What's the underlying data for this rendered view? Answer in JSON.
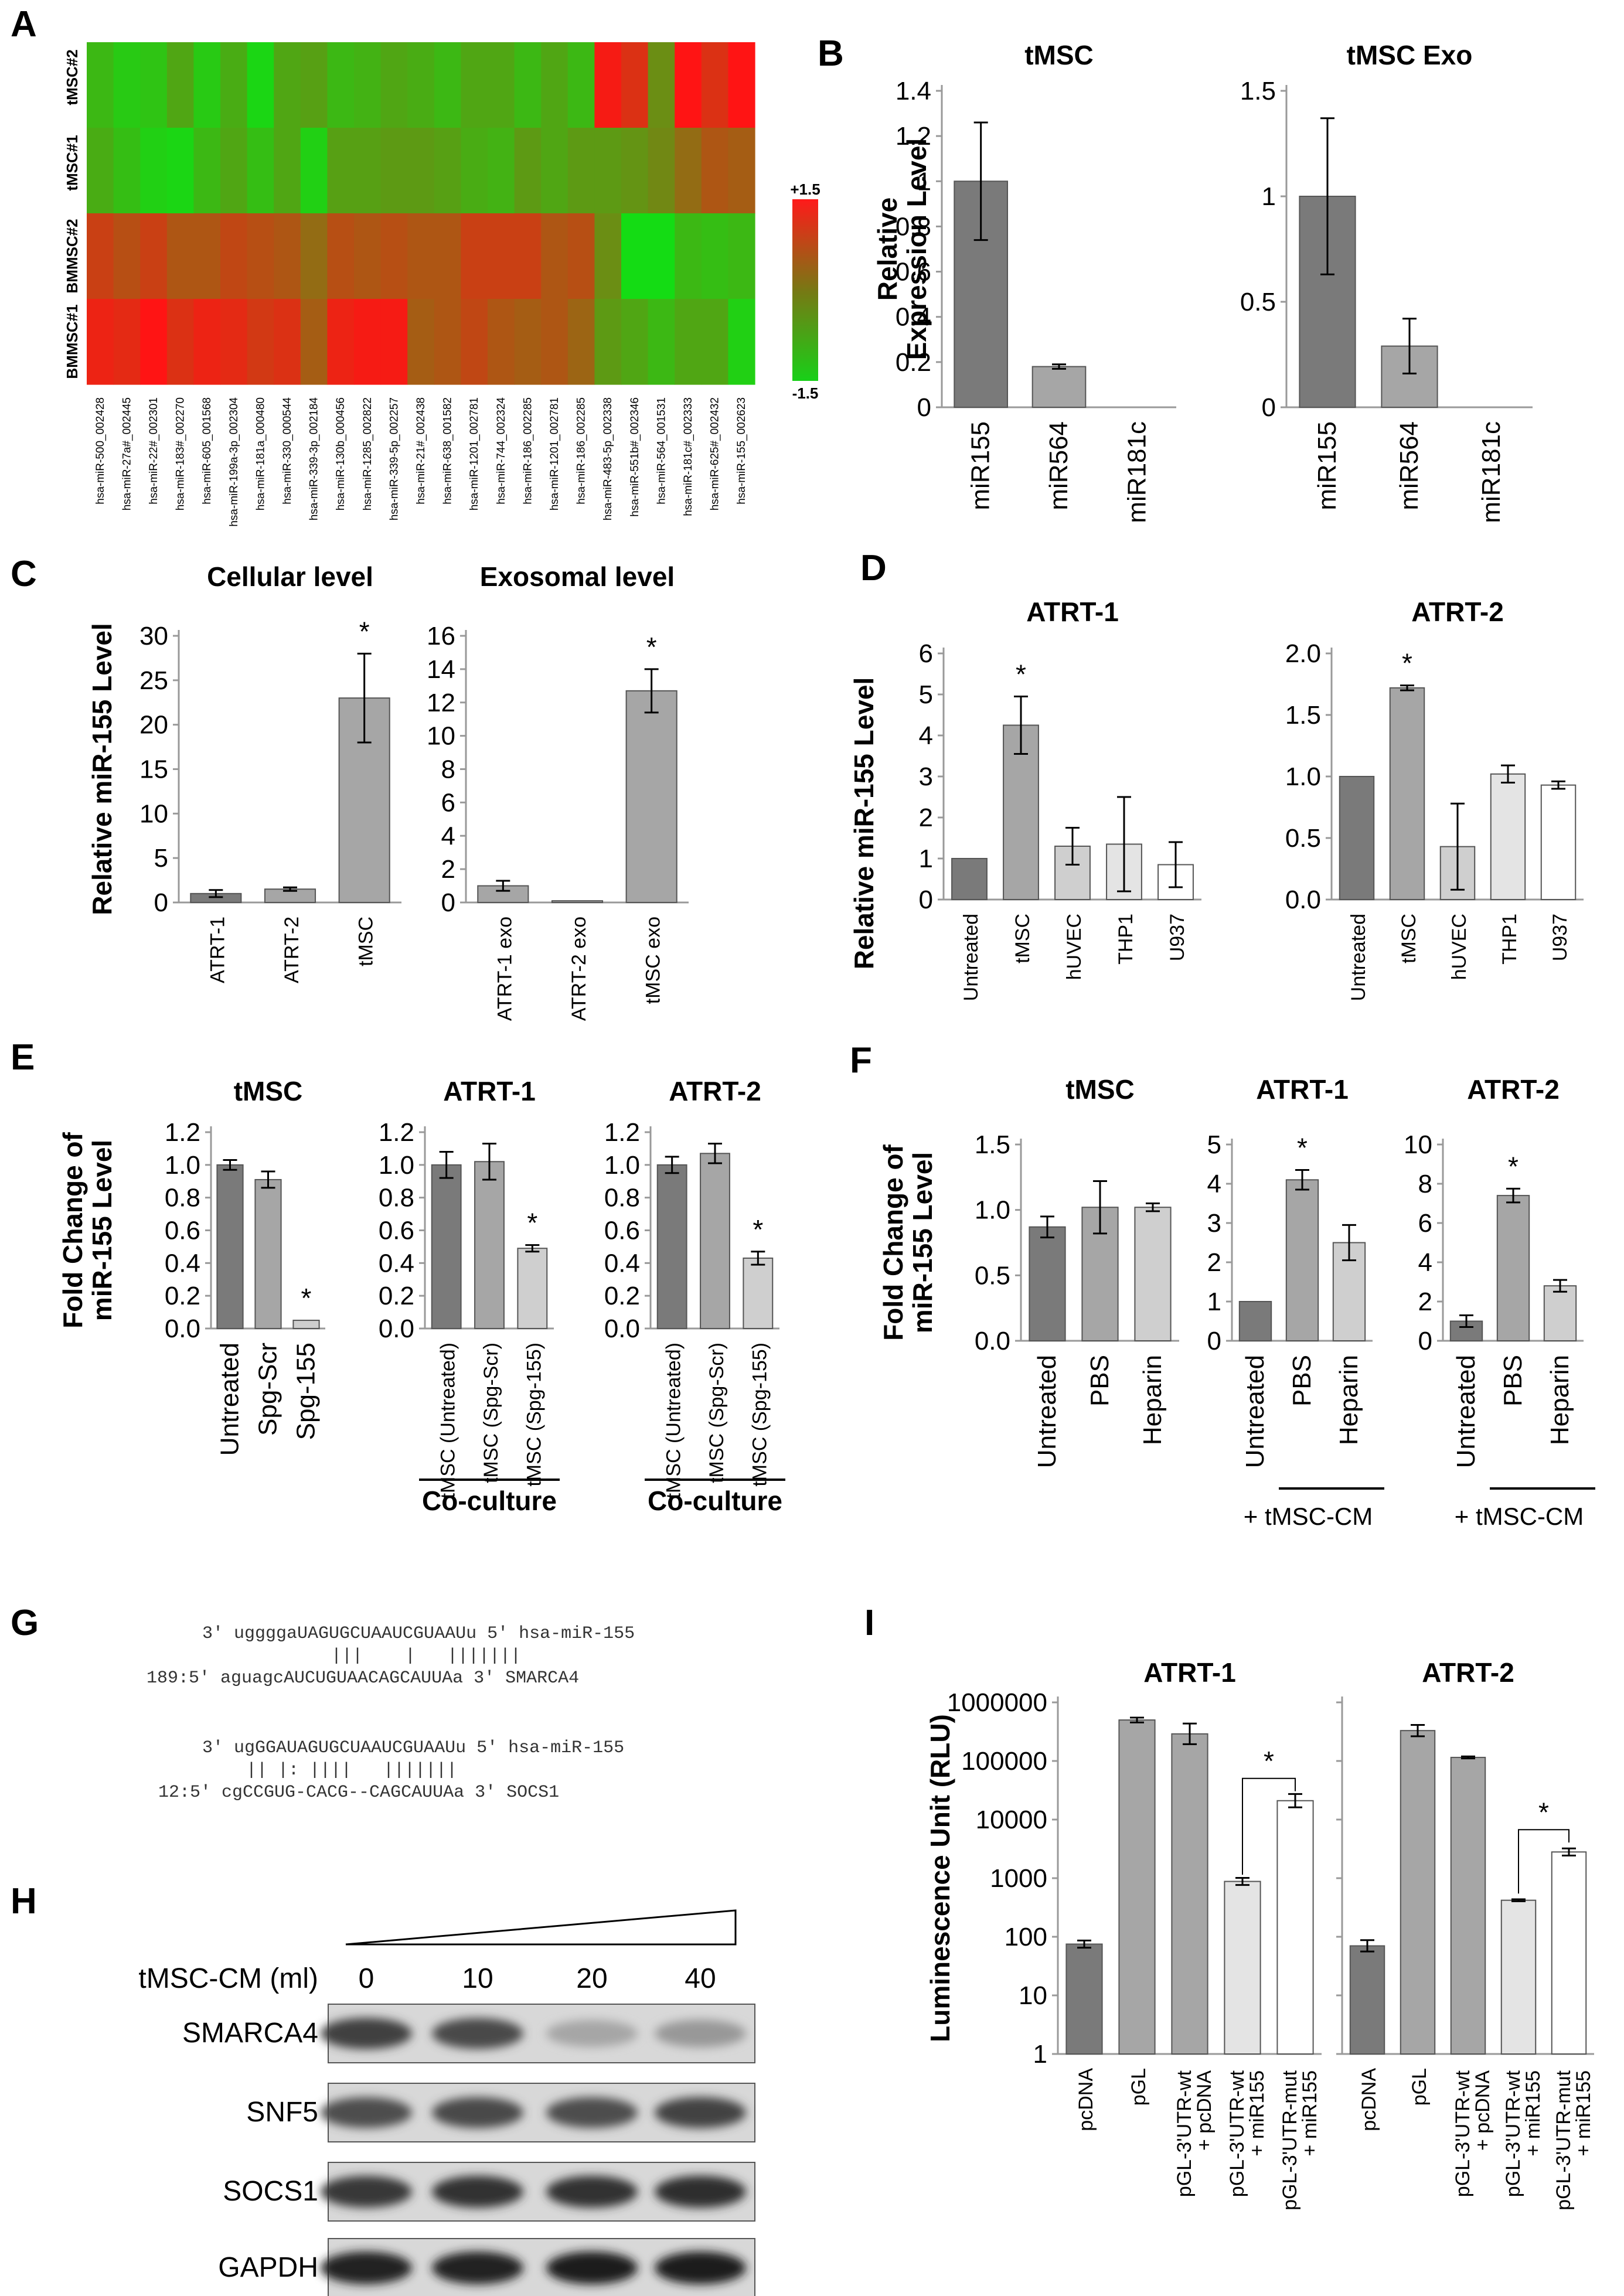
{
  "panel_letters": [
    "A",
    "B",
    "C",
    "D",
    "E",
    "F",
    "G",
    "H",
    "I"
  ],
  "colors": {
    "dark": "#7a7a7a",
    "mid": "#a6a6a6",
    "light": "#cfcfcf",
    "lighter": "#e4e4e4",
    "white": "#ffffff",
    "hm_green": "#18d018",
    "hm_red": "#ff1a1a"
  },
  "heatmap": {
    "rows": [
      "tMSC#2",
      "tMSC#1",
      "BMMSC#2",
      "BMMSC#1"
    ],
    "scale_max": "+1.5",
    "scale_min": "-1.5",
    "cols": [
      "hsa-miR-500_002428",
      "hsa-miR-27a#_002445",
      "hsa-miR-22#_002301",
      "hsa-miR-183#_002270",
      "hsa-miR-605_001568",
      "hsa-miR-199a-3p_002304",
      "hsa-miR-181a_000480",
      "hsa-miR-330_000544",
      "hsa-miR-339-3p_002184",
      "hsa-miR-130b_000456",
      "hsa-miR-1285_002822",
      "hsa-miR-339-5p_002257",
      "hsa-miR-21#_002438",
      "hsa-miR-638_001582",
      "hsa-miR-1201_002781",
      "hsa-miR-744_002324",
      "hsa-miR-186_002285",
      "hsa-miR-1201_002781",
      "hsa-miR-186_002285",
      "hsa-miR-483-5p_002338",
      "hsa-miR-551b#_002346",
      "hsa-miR-564_001531",
      "hsa-miR-181c#_002333",
      "hsa-miR-625#_002432",
      "hsa-miR-155_002623"
    ],
    "values": [
      [
        -0.9,
        -1.2,
        -1.1,
        -0.6,
        -1.2,
        -0.7,
        -1.4,
        -0.6,
        -0.5,
        -0.9,
        -0.8,
        -0.6,
        -0.7,
        -0.9,
        -0.6,
        -0.6,
        -0.9,
        -0.6,
        -0.9,
        1.4,
        1.1,
        -0.2,
        1.5,
        1.1,
        1.5
      ],
      [
        -0.7,
        -1.0,
        -1.3,
        -1.4,
        -0.9,
        -0.6,
        -1.0,
        -0.6,
        -1.3,
        -0.5,
        -0.5,
        -0.4,
        -0.4,
        -0.5,
        -0.7,
        -0.8,
        -0.4,
        -0.6,
        -0.4,
        -0.4,
        -0.3,
        -0.1,
        0.3,
        0.6,
        0.5
      ],
      [
        0.9,
        0.7,
        0.9,
        0.6,
        0.6,
        0.8,
        0.7,
        0.6,
        0.3,
        0.7,
        0.6,
        0.7,
        0.6,
        0.6,
        0.9,
        0.9,
        0.9,
        0.6,
        0.7,
        -0.2,
        -1.5,
        -1.5,
        -0.9,
        -1.0,
        -0.9
      ],
      [
        1.3,
        1.2,
        1.5,
        1.1,
        1.3,
        1.2,
        1.0,
        1.1,
        0.5,
        1.3,
        1.4,
        1.4,
        0.5,
        0.6,
        0.8,
        0.6,
        0.5,
        0.6,
        0.4,
        -0.4,
        -0.6,
        -0.9,
        -0.6,
        -0.6,
        -1.3
      ]
    ]
  },
  "chart_data": [
    {
      "id": "B1",
      "type": "bar",
      "title": "tMSC",
      "ylabel": "Relative Expression Level",
      "categories": [
        "miR155",
        "miR564",
        "miR181c"
      ],
      "values": [
        1.0,
        0.18,
        0.0
      ],
      "errors": [
        0.26,
        0.01,
        0.0
      ],
      "ylim": [
        0,
        1.4
      ],
      "ticks": [
        "0",
        "0.2",
        "0.4",
        "0.6",
        "0.8",
        "1",
        "1.2",
        "1.4"
      ]
    },
    {
      "id": "B2",
      "type": "bar",
      "title": "tMSC Exo",
      "categories": [
        "miR155",
        "miR564",
        "miR181c"
      ],
      "values": [
        1.0,
        0.29,
        0.0
      ],
      "errors": [
        0.37,
        0.13,
        0.0
      ],
      "ylim": [
        0,
        1.5
      ],
      "ticks": [
        "0",
        "0.5",
        "1",
        "1.5"
      ]
    },
    {
      "id": "C1",
      "type": "bar",
      "title": "Cellular level",
      "ylabel": "Relative miR-155 Level",
      "categories": [
        "ATRT-1",
        "ATRT-2",
        "tMSC"
      ],
      "values": [
        1.0,
        1.5,
        23.0
      ],
      "errors": [
        0.4,
        0.2,
        5.0
      ],
      "ylim": [
        0,
        30
      ],
      "ticks": [
        "0",
        "5",
        "10",
        "15",
        "20",
        "25",
        "30"
      ],
      "significant": [
        false,
        false,
        true
      ]
    },
    {
      "id": "C2",
      "type": "bar",
      "title": "Exosomal level",
      "categories": [
        "ATRT-1 exo",
        "ATRT-2 exo",
        "tMSC exo"
      ],
      "values": [
        1.0,
        0.1,
        12.7
      ],
      "errors": [
        0.3,
        0.0,
        1.3
      ],
      "ylim": [
        0,
        16
      ],
      "ticks": [
        "0",
        "2",
        "4",
        "6",
        "8",
        "10",
        "12",
        "14",
        "16"
      ],
      "significant": [
        false,
        false,
        true
      ]
    },
    {
      "id": "D1",
      "type": "bar",
      "title": "ATRT-1",
      "ylabel": "Relative miR-155 Level",
      "categories": [
        "Untreated",
        "tMSC",
        "hUVEC",
        "THP1",
        "U937"
      ],
      "values": [
        1.0,
        4.25,
        1.3,
        1.35,
        0.85
      ],
      "errors": [
        0.0,
        0.7,
        0.45,
        1.15,
        0.55
      ],
      "ylim": [
        0,
        6
      ],
      "ticks": [
        "0",
        "1",
        "2",
        "3",
        "4",
        "5",
        "6"
      ],
      "significant": [
        false,
        true,
        false,
        false,
        false
      ]
    },
    {
      "id": "D2",
      "type": "bar",
      "title": "ATRT-2",
      "categories": [
        "Untreated",
        "tMSC",
        "hUVEC",
        "THP1",
        "U937"
      ],
      "values": [
        1.0,
        1.72,
        0.43,
        1.02,
        0.93
      ],
      "errors": [
        0.0,
        0.02,
        0.35,
        0.07,
        0.03
      ],
      "ylim": [
        0,
        2.0
      ],
      "ticks": [
        "0.0",
        "0.5",
        "1.0",
        "1.5",
        "2.0"
      ],
      "significant": [
        false,
        true,
        false,
        false,
        false
      ]
    },
    {
      "id": "E1",
      "type": "bar",
      "title": "tMSC",
      "ylabel": "Fold Change of miR-155 Level",
      "categories": [
        "Untreated",
        "Spg-Scr",
        "Spg-155"
      ],
      "values": [
        1.0,
        0.91,
        0.05
      ],
      "errors": [
        0.03,
        0.05,
        0.0
      ],
      "ylim": [
        0,
        1.2
      ],
      "ticks": [
        "0.0",
        "0.2",
        "0.4",
        "0.6",
        "0.8",
        "1.0",
        "1.2"
      ],
      "significant": [
        false,
        false,
        true
      ]
    },
    {
      "id": "E2",
      "type": "bar",
      "title": "ATRT-1",
      "categories": [
        "tMSC (Untreated)",
        "tMSC (Spg-Scr)",
        "tMSC (Spg-155)"
      ],
      "values": [
        1.0,
        1.02,
        0.49
      ],
      "errors": [
        0.08,
        0.11,
        0.02
      ],
      "ylim": [
        0,
        1.2
      ],
      "ticks": [
        "0.0",
        "0.2",
        "0.4",
        "0.6",
        "0.8",
        "1.0",
        "1.2"
      ],
      "significant": [
        false,
        false,
        true
      ],
      "group_label": "Co-culture"
    },
    {
      "id": "E3",
      "type": "bar",
      "title": "ATRT-2",
      "categories": [
        "tMSC (Untreated)",
        "tMSC (Spg-Scr)",
        "tMSC (Spg-155)"
      ],
      "values": [
        1.0,
        1.07,
        0.43
      ],
      "errors": [
        0.05,
        0.06,
        0.04
      ],
      "ylim": [
        0,
        1.2
      ],
      "ticks": [
        "0.0",
        "0.2",
        "0.4",
        "0.6",
        "0.8",
        "1.0",
        "1.2"
      ],
      "significant": [
        false,
        false,
        true
      ],
      "group_label": "Co-culture"
    },
    {
      "id": "F1",
      "type": "bar",
      "title": "tMSC",
      "ylabel": "Fold Change of miR-155 Level",
      "categories": [
        "Untreated",
        "PBS",
        "Heparin"
      ],
      "values": [
        0.87,
        1.02,
        1.02
      ],
      "errors": [
        0.08,
        0.2,
        0.03
      ],
      "ylim": [
        0,
        1.5
      ],
      "ticks": [
        "0.0",
        "0.5",
        "1.0",
        "1.5"
      ]
    },
    {
      "id": "F2",
      "type": "bar",
      "title": "ATRT-1",
      "categories": [
        "Untreated",
        "PBS",
        "Heparin"
      ],
      "values": [
        1.0,
        4.1,
        2.5
      ],
      "errors": [
        0.0,
        0.25,
        0.45
      ],
      "ylim": [
        0,
        5
      ],
      "ticks": [
        "0",
        "1",
        "2",
        "3",
        "4",
        "5"
      ],
      "significant": [
        false,
        true,
        false
      ],
      "group_label": "+ tMSC-CM"
    },
    {
      "id": "F3",
      "type": "bar",
      "title": "ATRT-2",
      "categories": [
        "Untreated",
        "PBS",
        "Heparin"
      ],
      "values": [
        1.0,
        7.4,
        2.8
      ],
      "errors": [
        0.3,
        0.35,
        0.3
      ],
      "ylim": [
        0,
        10
      ],
      "ticks": [
        "0",
        "2",
        "4",
        "6",
        "8",
        "10"
      ],
      "significant": [
        false,
        true,
        false
      ],
      "group_label": "+ tMSC-CM"
    },
    {
      "id": "I1",
      "type": "bar",
      "scale": "log",
      "title": "ATRT-1",
      "ylabel": "Luminescence Unit (RLU)",
      "categories": [
        "pcDNA",
        "pGL",
        "pGL-3'UTR-wt + pcDNA",
        "pGL-3'UTR-wt + miR155",
        "pGL-3'UTR-mut + miR155"
      ],
      "values": [
        75,
        500000,
        290000,
        880,
        21000
      ],
      "error_factor": [
        1.15,
        1.1,
        1.5,
        1.15,
        1.3
      ],
      "ylim": [
        1,
        1000000
      ],
      "ticks": [
        "1",
        "10",
        "100",
        "1000",
        "10000",
        "100000",
        "1000000"
      ]
    },
    {
      "id": "I2",
      "type": "bar",
      "scale": "log",
      "title": "ATRT-2",
      "categories": [
        "pcDNA",
        "pGL",
        "pGL-3'UTR-wt + pcDNA",
        "pGL-3'UTR-wt + miR155",
        "pGL-3'UTR-mut + miR155"
      ],
      "values": [
        70,
        330000,
        115000,
        420,
        2800
      ],
      "error_factor": [
        1.25,
        1.25,
        1.04,
        1.04,
        1.15
      ],
      "ylim": [
        1,
        1000000
      ]
    }
  ],
  "sequences": {
    "mir155_a": "3' uggggaUAGUGCUAAUCGUAAUu 5' hsa-miR-155",
    "pair_a": "|||    |   |||||||",
    "smarca4": "189:5' aguagcAUCUGUAACAGCAUUAa 3' SMARCA4",
    "mir155_b": "3' ugGGAUAGUGCUAAUCGUAAUu 5' hsa-miR-155",
    "pair_b": "|| |: ||||   |||||||",
    "socs1": "12:5' cgCCGUG-CACG--CAGCAUUAa 3' SOCS1"
  },
  "western": {
    "condition_label": "tMSC-CM (ml)",
    "doses": [
      "0",
      "10",
      "20",
      "40"
    ],
    "proteins": [
      "SMARCA4",
      "SNF5",
      "SOCS1",
      "GAPDH"
    ],
    "intensity": [
      [
        0.8,
        0.75,
        0.2,
        0.28
      ],
      [
        0.72,
        0.75,
        0.72,
        0.78
      ],
      [
        0.85,
        0.88,
        0.88,
        0.9
      ],
      [
        0.98,
        0.98,
        1.0,
        1.0
      ]
    ]
  },
  "significance_marker": "*"
}
